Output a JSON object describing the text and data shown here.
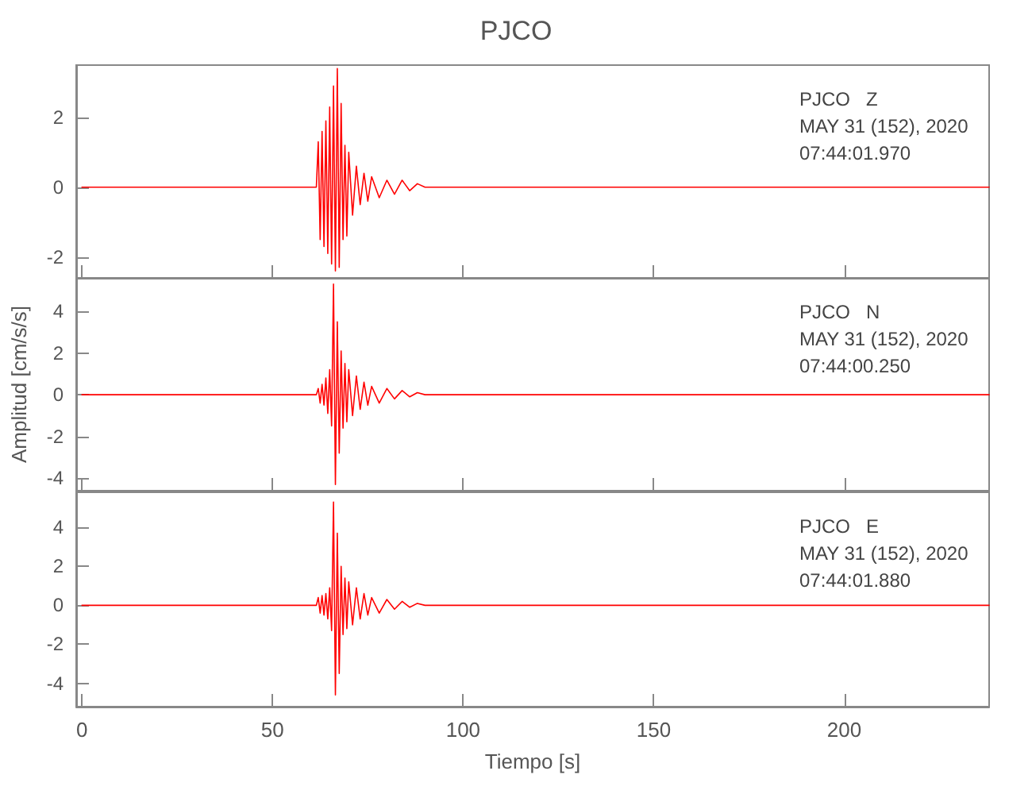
{
  "chart_data": [
    {
      "type": "line",
      "title": "PJCO",
      "annotations": [
        "PJCO   Z",
        "MAY 31 (152), 2020",
        "07:44:01.970"
      ],
      "marker": "none",
      "tick_labels": "y",
      "xlim": [
        -1.5,
        238
      ],
      "xticks": [
        0,
        50,
        100,
        150,
        200
      ],
      "ylim": [
        -2.6,
        3.5
      ],
      "yticks": [
        -2,
        0,
        2
      ],
      "x": [
        0,
        10,
        20,
        30,
        40,
        50,
        60,
        61.5,
        62,
        62.5,
        63,
        63.5,
        64,
        64.5,
        65,
        65.5,
        66,
        66.5,
        67,
        67.5,
        68,
        68.5,
        69,
        69.5,
        70,
        71,
        72,
        73,
        74,
        75,
        76,
        78,
        80,
        82,
        84,
        86,
        88,
        90,
        95,
        100,
        120,
        150,
        180,
        210,
        238
      ],
      "series": [
        {
          "color": "#ff0000",
          "values": [
            0,
            0,
            0,
            0,
            0,
            0,
            0,
            0,
            1.3,
            -1.5,
            1.6,
            -1.7,
            1.9,
            -1.9,
            2.3,
            -2.2,
            2.9,
            -2.4,
            3.4,
            -2.3,
            2.4,
            -1.5,
            1.2,
            -1.4,
            1.0,
            -0.8,
            0.6,
            -0.5,
            0.4,
            -0.4,
            0.3,
            -0.3,
            0.2,
            -0.2,
            0.2,
            -0.1,
            0.1,
            0,
            0,
            0,
            0,
            0,
            0,
            0,
            0
          ]
        }
      ]
    },
    {
      "type": "line",
      "ylabel": "Amplitud [cm/s/s]",
      "annotations": [
        "PJCO   N",
        "MAY 31 (152), 2020",
        "07:44:00.250"
      ],
      "marker": "none",
      "tick_labels": "y",
      "xlim": [
        -1.5,
        238
      ],
      "xticks": [
        0,
        50,
        100,
        150,
        200
      ],
      "ylim": [
        -4.6,
        5.6
      ],
      "yticks": [
        -4,
        -2,
        0,
        2,
        4
      ],
      "x": [
        0,
        10,
        20,
        30,
        40,
        50,
        60,
        61.5,
        62,
        62.5,
        63,
        63.5,
        64,
        64.5,
        65,
        65.5,
        66,
        66.5,
        67,
        67.5,
        68,
        68.5,
        69,
        69.5,
        70,
        71,
        72,
        73,
        74,
        75,
        76,
        78,
        80,
        82,
        84,
        86,
        88,
        90,
        95,
        100,
        120,
        150,
        180,
        210,
        238
      ],
      "series": [
        {
          "color": "#ff0000",
          "values": [
            0,
            0,
            0,
            0,
            0,
            0,
            0,
            0,
            0.3,
            -0.4,
            0.5,
            -0.5,
            0.8,
            -0.9,
            1.2,
            -1.5,
            5.3,
            -4.3,
            3.5,
            -2.8,
            2.1,
            -1.6,
            1.5,
            -1.3,
            1.2,
            -1.0,
            0.9,
            -0.7,
            0.6,
            -0.5,
            0.4,
            -0.4,
            0.3,
            -0.2,
            0.2,
            -0.1,
            0.1,
            0,
            0,
            0,
            0,
            0,
            0,
            0,
            0
          ]
        }
      ]
    },
    {
      "type": "line",
      "xlabel": "Tiempo [s]",
      "annotations": [
        "PJCO   E",
        "MAY 31 (152), 2020",
        "07:44:01.880"
      ],
      "marker": "none",
      "xlim": [
        -1.5,
        238
      ],
      "xticks": [
        0,
        50,
        100,
        150,
        200
      ],
      "ylim": [
        -5.2,
        5.8
      ],
      "yticks": [
        -4,
        -2,
        0,
        2,
        4
      ],
      "x": [
        0,
        10,
        20,
        30,
        40,
        50,
        60,
        61.5,
        62,
        62.5,
        63,
        63.5,
        64,
        64.5,
        65,
        65.5,
        66,
        66.5,
        67,
        67.5,
        68,
        68.5,
        69,
        69.5,
        70,
        71,
        72,
        73,
        74,
        75,
        76,
        78,
        80,
        82,
        84,
        86,
        88,
        90,
        95,
        100,
        120,
        150,
        180,
        210,
        238
      ],
      "series": [
        {
          "color": "#ff0000",
          "values": [
            0,
            0,
            0,
            0,
            0,
            0,
            0,
            0,
            0.4,
            -0.4,
            0.5,
            -0.5,
            0.6,
            -0.7,
            0.9,
            -1.3,
            5.3,
            -4.6,
            3.7,
            -3.5,
            2.0,
            -1.5,
            1.4,
            -1.2,
            1.2,
            -1.0,
            0.9,
            -0.7,
            0.6,
            -0.5,
            0.4,
            -0.4,
            0.3,
            -0.2,
            0.2,
            -0.1,
            0.1,
            0,
            0,
            0,
            0,
            0,
            0,
            0,
            0
          ]
        }
      ]
    }
  ]
}
